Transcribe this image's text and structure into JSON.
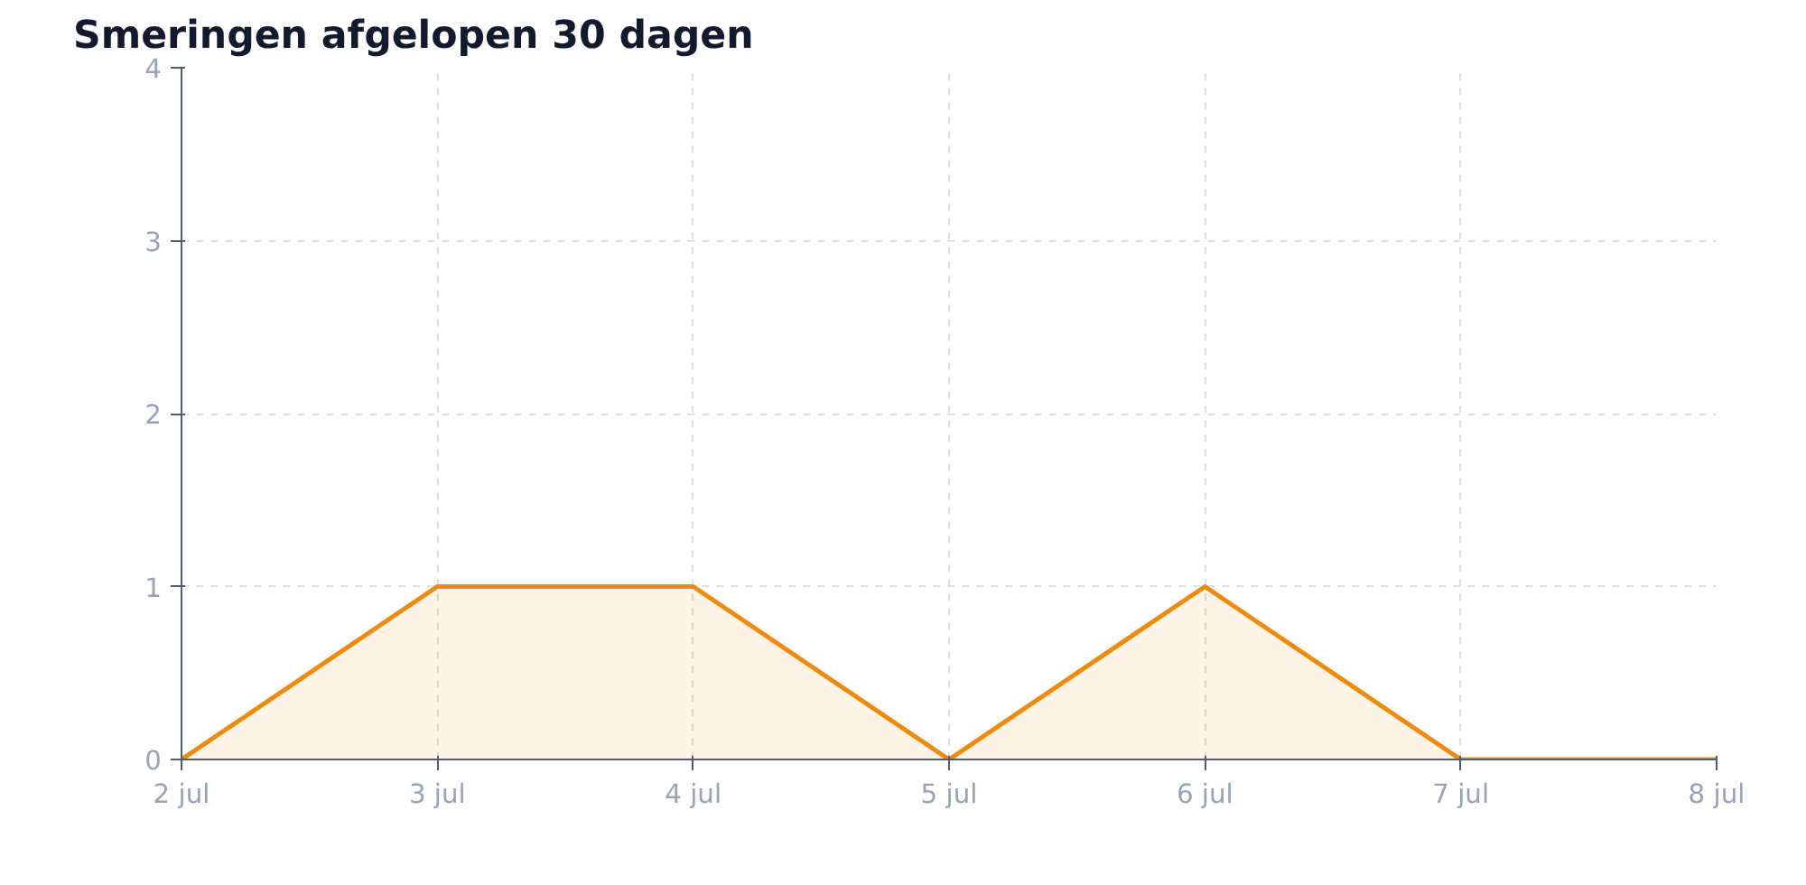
{
  "chart_data": {
    "type": "area",
    "title": "Smeringen afgelopen 30 dagen",
    "categories": [
      "2 jul",
      "3 jul",
      "4 jul",
      "5 jul",
      "6 jul",
      "7 jul",
      "8 jul"
    ],
    "series": [
      {
        "color": "#ee8a0c",
        "values": [
          0,
          1,
          1,
          0,
          1,
          0,
          0
        ]
      }
    ],
    "ylim": [
      0,
      4
    ],
    "yticks": [
      0,
      1,
      2,
      3,
      4
    ],
    "grid": true,
    "marker": "none",
    "line_style": "solid"
  }
}
